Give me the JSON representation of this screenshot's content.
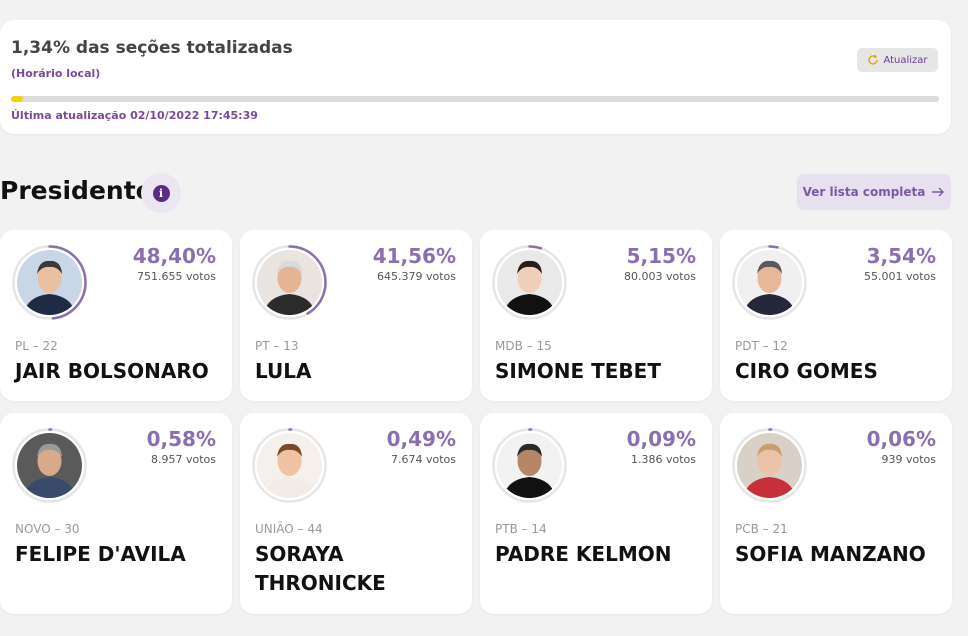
{
  "status": {
    "title": "1,34% das seções totalizadas",
    "subtitle": "(Horário local)",
    "refresh_label": "Atualizar",
    "progress": 0.0134,
    "last_update": "Última atualização 02/10/2022 17:45:39",
    "progress_color": "#f2d400"
  },
  "section": {
    "title": "Presidente",
    "info_icon": "info-icon",
    "full_list_label": "Ver lista completa"
  },
  "colors": {
    "accent": "#8a6fb0",
    "ring_track": "#e6e6e6",
    "label_purple": "#7a4a9c"
  },
  "candidates": [
    {
      "party": "PL – 22",
      "name": "JAIR BOLSONARO",
      "pct": "48,40%",
      "votes": "751.655 votos",
      "share": 0.484,
      "skin": "#e9c0a2",
      "hair": "#3a3a3a",
      "suit": "#1f2a44",
      "bg": "#c9d6e6"
    },
    {
      "party": "PT – 13",
      "name": "LULA",
      "pct": "41,56%",
      "votes": "645.379 votos",
      "share": 0.4156,
      "skin": "#e4b494",
      "hair": "#d9d9d9",
      "suit": "#2b2b2b",
      "bg": "#e9e4df"
    },
    {
      "party": "MDB – 15",
      "name": "SIMONE TEBET",
      "pct": "5,15%",
      "votes": "80.003 votos",
      "share": 0.0515,
      "skin": "#efcfba",
      "hair": "#2a1d17",
      "suit": "#111111",
      "bg": "#e9e9e9"
    },
    {
      "party": "PDT – 12",
      "name": "CIRO GOMES",
      "pct": "3,54%",
      "votes": "55.001 votos",
      "share": 0.0354,
      "skin": "#e7b799",
      "hair": "#5a5a5a",
      "suit": "#24283a",
      "bg": "#f0f0f0"
    },
    {
      "party": "NOVO – 30",
      "name": "FELIPE D'AVILA",
      "pct": "0,58%",
      "votes": "8.957 votos",
      "share": 0.0058,
      "skin": "#d9a98c",
      "hair": "#9a9a9a",
      "suit": "#3a4a6a",
      "bg": "#5a5a5a"
    },
    {
      "party": "UNIÃO – 44",
      "name": "SORAYA THRONICKE",
      "pct": "0,49%",
      "votes": "7.674 votos",
      "share": 0.0049,
      "skin": "#efc3a4",
      "hair": "#7a4a2a",
      "suit": "#f3ece6",
      "bg": "#f5f0ec"
    },
    {
      "party": "PTB – 14",
      "name": "PADRE KELMON",
      "pct": "0,09%",
      "votes": "1.386 votos",
      "share": 0.0009,
      "skin": "#b58668",
      "hair": "#2a2a2a",
      "suit": "#111111",
      "bg": "#f2f2f2"
    },
    {
      "party": "PCB – 21",
      "name": "SOFIA MANZANO",
      "pct": "0,06%",
      "votes": "939 votos",
      "share": 0.0006,
      "skin": "#ecc3a8",
      "hair": "#c8a070",
      "suit": "#c7303a",
      "bg": "#d9d0c7"
    }
  ]
}
